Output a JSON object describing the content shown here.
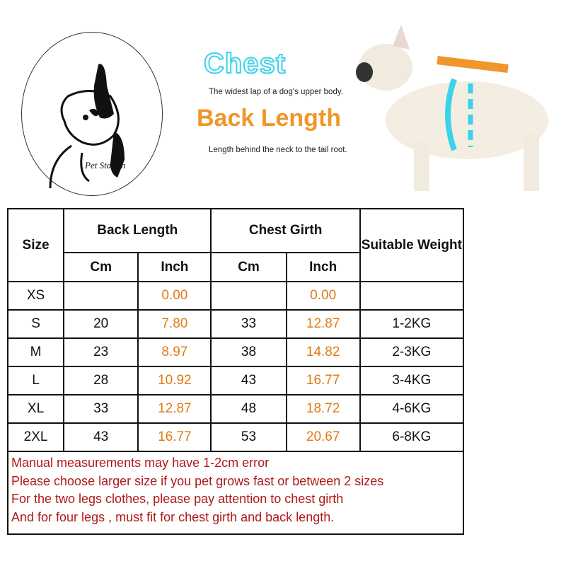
{
  "logo": {
    "brand": "Pet Station"
  },
  "legend": {
    "chest_title": "Chest",
    "chest_desc": "The widest lap of a dog's upper body.",
    "back_title": "Back Length",
    "back_desc": "Length behind the neck to the tail root.",
    "colors": {
      "chest": "#3ad3ea",
      "back": "#f0962a"
    }
  },
  "table": {
    "headers": {
      "size": "Size",
      "back": "Back Length",
      "chest": "Chest Girth",
      "weight": "Suitable Weight",
      "cm": "Cm",
      "inch": "Inch"
    },
    "rows": [
      {
        "size": "XS",
        "back_cm": "",
        "back_in": "0.00",
        "chest_cm": "",
        "chest_in": "0.00",
        "weight": ""
      },
      {
        "size": "S",
        "back_cm": "20",
        "back_in": "7.80",
        "chest_cm": "33",
        "chest_in": "12.87",
        "weight": "1-2KG"
      },
      {
        "size": "M",
        "back_cm": "23",
        "back_in": "8.97",
        "chest_cm": "38",
        "chest_in": "14.82",
        "weight": "2-3KG"
      },
      {
        "size": "L",
        "back_cm": "28",
        "back_in": "10.92",
        "chest_cm": "43",
        "chest_in": "16.77",
        "weight": "3-4KG"
      },
      {
        "size": "XL",
        "back_cm": "33",
        "back_in": "12.87",
        "chest_cm": "48",
        "chest_in": "18.72",
        "weight": "4-6KG"
      },
      {
        "size": "2XL",
        "back_cm": "43",
        "back_in": "16.77",
        "chest_cm": "53",
        "chest_in": "20.67",
        "weight": "6-8KG"
      }
    ],
    "notes": [
      "Manual measurements may have 1-2cm error",
      "Please choose larger size if you pet grows fast or between 2 sizes",
      "For the two legs clothes,  please pay attention to chest girth",
      "And for four legs ,  must fit for chest girth and back length."
    ]
  }
}
